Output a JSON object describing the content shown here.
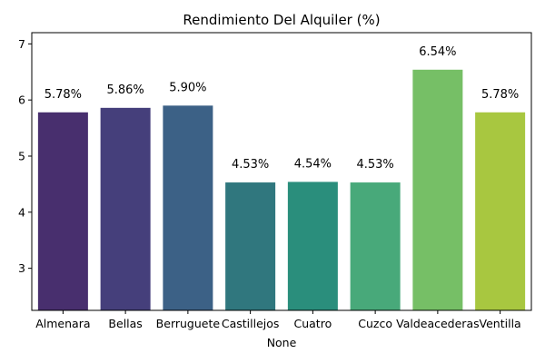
{
  "chart_data": {
    "type": "bar",
    "title": "Rendimiento Del Alquiler (%)",
    "xlabel": "None",
    "ylabel": "",
    "categories": [
      "Almenara",
      "Bellas",
      "Berruguete",
      "Castillejos",
      "Cuatro",
      "Cuzco",
      "Valdeacederas",
      "Ventilla"
    ],
    "values": [
      5.78,
      5.86,
      5.9,
      4.53,
      4.54,
      4.53,
      6.54,
      5.78
    ],
    "data_labels": [
      "5.78%",
      "5.86%",
      "5.90%",
      "4.53%",
      "4.54%",
      "4.53%",
      "6.54%",
      "5.78%"
    ],
    "colors": [
      "#482f6e",
      "#453f7b",
      "#3c6186",
      "#30777e",
      "#2a8e7c",
      "#48a97a",
      "#76bf66",
      "#a8c740"
    ],
    "ylim": [
      2.25,
      7.2
    ],
    "yticks": [
      3,
      4,
      5,
      6,
      7
    ],
    "grid": false,
    "legend": "none"
  }
}
